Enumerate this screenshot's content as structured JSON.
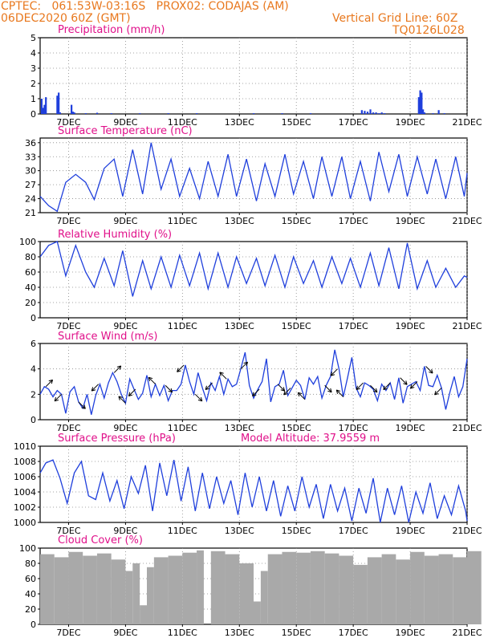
{
  "header": {
    "line1": "CPTEC:   061:53W-03:16S   PROX02: CODAJAS (AM)",
    "line2": "06DEC2020 60Z (GMT)",
    "grid_note": "Vertical Grid Line: 60Z",
    "code": "TQ0126L028"
  },
  "colors": {
    "header": "#e8781e",
    "title": "#e0108a",
    "series": "#1f3fdc",
    "cloud": "#a9a9a9",
    "grid": "#888888"
  },
  "chart_data": [
    {
      "type": "bar",
      "title": "Precipitation (mm/h)",
      "x_ticks": [
        "7DEC",
        "9DEC",
        "11DEC",
        "13DEC",
        "15DEC",
        "17DEC",
        "19DEC",
        "21DEC"
      ],
      "x": [
        0.05,
        0.1,
        0.15,
        0.2,
        0.6,
        0.65,
        0.7,
        1.1,
        1.15,
        1.2,
        1.6,
        2.0,
        2.5,
        3.5,
        4.5,
        5.5,
        7.5,
        8.5,
        9.5,
        11.3,
        11.4,
        11.5,
        11.6,
        11.7,
        11.8,
        11.9,
        12.0,
        12.1,
        13.3,
        13.35,
        13.4,
        13.45,
        13.5,
        13.8,
        14.0,
        14.2
      ],
      "values": [
        1.0,
        0.4,
        0.6,
        1.1,
        1.2,
        1.4,
        0.1,
        0.6,
        0.15,
        0.1,
        0.05,
        0.08,
        0.05,
        0.05,
        0.05,
        0.05,
        0.05,
        0.05,
        0.05,
        0.25,
        0.2,
        0.15,
        0.3,
        0.1,
        0.1,
        0.05,
        0.1,
        0.05,
        1.1,
        1.55,
        1.4,
        0.3,
        0.1,
        0.05,
        0.25,
        0.05
      ],
      "ylim": [
        0,
        5
      ],
      "yticks": [
        0,
        1,
        2,
        3,
        4,
        5
      ]
    },
    {
      "type": "line",
      "title": "Surface Temperature (nC)",
      "x_ticks": [
        "7DEC",
        "9DEC",
        "11DEC",
        "13DEC",
        "15DEC",
        "17DEC",
        "19DEC",
        "21DEC"
      ],
      "x": [
        0,
        0.3,
        0.6,
        0.9,
        1.25,
        1.6,
        1.9,
        2.25,
        2.6,
        2.9,
        3.25,
        3.6,
        3.9,
        4.25,
        4.6,
        4.9,
        5.25,
        5.6,
        5.9,
        6.25,
        6.6,
        6.9,
        7.25,
        7.6,
        7.9,
        8.25,
        8.6,
        8.9,
        9.25,
        9.6,
        9.9,
        10.25,
        10.6,
        10.9,
        11.25,
        11.6,
        11.9,
        12.25,
        12.6,
        12.9,
        13.25,
        13.6,
        13.9,
        14.25,
        14.6,
        14.9,
        15.0
      ],
      "values": [
        24.5,
        22.5,
        21.3,
        27.5,
        29.2,
        27.5,
        23.8,
        30.5,
        32.5,
        24.5,
        34.5,
        25.0,
        36.0,
        26.0,
        32.5,
        24.5,
        30.5,
        24.0,
        32.0,
        24.5,
        33.5,
        24.5,
        32.5,
        23.5,
        31.5,
        24.5,
        33.5,
        25.0,
        32.0,
        24.0,
        33.0,
        24.5,
        33.0,
        24.0,
        32.0,
        23.5,
        34.0,
        25.5,
        33.5,
        24.5,
        33.0,
        25.0,
        32.5,
        24.0,
        33.0,
        24.5,
        29.5
      ],
      "ylim": [
        21,
        37
      ],
      "yticks": [
        21,
        24,
        27,
        30,
        33,
        36
      ]
    },
    {
      "type": "line",
      "title": "Relative Humidity (%)",
      "x_ticks": [
        "7DEC",
        "9DEC",
        "11DEC",
        "13DEC",
        "15DEC",
        "17DEC",
        "19DEC",
        "21DEC"
      ],
      "x": [
        0,
        0.3,
        0.6,
        0.9,
        1.25,
        1.6,
        1.9,
        2.25,
        2.6,
        2.9,
        3.25,
        3.6,
        3.9,
        4.25,
        4.6,
        4.9,
        5.25,
        5.6,
        5.9,
        6.25,
        6.6,
        6.9,
        7.25,
        7.6,
        7.9,
        8.25,
        8.6,
        8.9,
        9.25,
        9.6,
        9.9,
        10.25,
        10.6,
        10.9,
        11.25,
        11.6,
        11.9,
        12.25,
        12.6,
        12.9,
        13.25,
        13.6,
        13.9,
        14.25,
        14.6,
        14.9,
        15.0
      ],
      "values": [
        80,
        95,
        100,
        55,
        95,
        60,
        40,
        78,
        42,
        88,
        28,
        75,
        38,
        80,
        40,
        82,
        42,
        85,
        38,
        85,
        40,
        80,
        45,
        78,
        42,
        82,
        40,
        80,
        45,
        75,
        40,
        80,
        45,
        78,
        40,
        85,
        42,
        92,
        38,
        98,
        38,
        75,
        40,
        65,
        40,
        55,
        53
      ],
      "ylim": [
        0,
        100
      ],
      "yticks": [
        0,
        20,
        40,
        60,
        80,
        100
      ]
    },
    {
      "type": "line",
      "title": "Surface Wind (m/s)",
      "x_ticks": [
        "7DEC",
        "9DEC",
        "11DEC",
        "13DEC",
        "15DEC",
        "17DEC",
        "19DEC",
        "21DEC"
      ],
      "x": [
        0,
        0.15,
        0.3,
        0.45,
        0.6,
        0.75,
        0.9,
        1.05,
        1.2,
        1.35,
        1.5,
        1.65,
        1.8,
        1.95,
        2.1,
        2.25,
        2.4,
        2.55,
        2.7,
        2.85,
        3.0,
        3.15,
        3.3,
        3.45,
        3.6,
        3.75,
        3.9,
        4.05,
        4.2,
        4.35,
        4.5,
        4.65,
        4.8,
        4.95,
        5.1,
        5.25,
        5.4,
        5.55,
        5.7,
        5.85,
        6.0,
        6.15,
        6.3,
        6.45,
        6.6,
        6.75,
        6.9,
        7.05,
        7.2,
        7.35,
        7.5,
        7.65,
        7.8,
        7.95,
        8.1,
        8.25,
        8.4,
        8.55,
        8.7,
        8.85,
        9.0,
        9.15,
        9.3,
        9.45,
        9.6,
        9.75,
        9.9,
        10.05,
        10.2,
        10.35,
        10.5,
        10.65,
        10.8,
        10.95,
        11.1,
        11.25,
        11.4,
        11.55,
        11.7,
        11.85,
        12.0,
        12.15,
        12.3,
        12.45,
        12.6,
        12.75,
        12.9,
        13.05,
        13.2,
        13.35,
        13.5,
        13.65,
        13.8,
        13.95,
        14.1,
        14.25,
        14.4,
        14.55,
        14.7,
        14.85,
        15.0
      ],
      "values": [
        2.0,
        2.6,
        2.4,
        1.8,
        2.3,
        2.0,
        0.5,
        2.2,
        2.6,
        1.4,
        0.9,
        2.0,
        0.4,
        1.9,
        2.8,
        1.7,
        2.9,
        3.7,
        3.0,
        2.0,
        1.3,
        3.2,
        2.4,
        1.6,
        2.1,
        3.5,
        1.8,
        2.8,
        1.9,
        2.7,
        1.5,
        2.3,
        2.3,
        2.8,
        4.3,
        3.0,
        2.0,
        3.7,
        2.5,
        1.5,
        2.9,
        2.3,
        3.4,
        2.0,
        3.2,
        2.6,
        2.8,
        4.0,
        5.3,
        2.7,
        1.7,
        2.4,
        3.0,
        4.8,
        1.4,
        2.6,
        2.8,
        3.9,
        1.9,
        2.5,
        3.1,
        2.7,
        1.6,
        3.3,
        2.8,
        3.4,
        1.7,
        2.7,
        3.4,
        5.5,
        4.0,
        1.8,
        3.3,
        4.9,
        2.5,
        1.8,
        2.9,
        2.7,
        2.4,
        1.5,
        2.8,
        2.3,
        2.9,
        1.6,
        3.3,
        1.3,
        2.6,
        2.8,
        3.0,
        2.3,
        4.2,
        2.7,
        2.6,
        3.5,
        2.5,
        0.8,
        2.2,
        3.4,
        1.8,
        2.6,
        4.8
      ],
      "ylim": [
        0,
        6
      ],
      "yticks": [
        0,
        2,
        4,
        6
      ],
      "arrow_x": [
        0.2,
        0.75,
        1.35,
        2.05,
        2.6,
        3.0,
        3.35,
        4.05,
        4.4,
        5.05,
        5.45,
        6.05,
        6.55,
        7.05,
        7.7,
        8.35,
        8.8,
        9.3,
        10.0,
        10.45,
        10.65,
        11.35,
        11.6,
        12.3,
        12.65,
        13.25,
        13.55,
        14.1
      ],
      "arrow_dir": [
        45,
        225,
        315,
        225,
        45,
        135,
        225,
        135,
        315,
        225,
        315,
        225,
        135,
        45,
        225,
        315,
        225,
        135,
        315,
        225,
        135,
        225,
        315,
        225,
        315,
        225,
        315,
        225
      ]
    },
    {
      "type": "line",
      "title": "Surface Pressure (hPa)",
      "annotation": "Model Altitude: 37.9559  m",
      "x_ticks": [
        "7DEC",
        "9DEC",
        "11DEC",
        "13DEC",
        "15DEC",
        "17DEC",
        "19DEC",
        "21DEC"
      ],
      "x": [
        0,
        0.2,
        0.45,
        0.7,
        0.95,
        1.2,
        1.45,
        1.7,
        1.95,
        2.2,
        2.45,
        2.7,
        2.95,
        3.2,
        3.45,
        3.7,
        3.95,
        4.2,
        4.45,
        4.7,
        4.95,
        5.2,
        5.45,
        5.7,
        5.95,
        6.2,
        6.45,
        6.7,
        6.95,
        7.2,
        7.45,
        7.7,
        7.95,
        8.2,
        8.45,
        8.7,
        8.95,
        9.2,
        9.45,
        9.7,
        9.95,
        10.2,
        10.45,
        10.7,
        10.95,
        11.2,
        11.45,
        11.7,
        11.95,
        12.2,
        12.45,
        12.7,
        12.95,
        13.2,
        13.45,
        13.7,
        13.95,
        14.2,
        14.45,
        14.7,
        14.95,
        15.0
      ],
      "values": [
        1006.5,
        1007.8,
        1008.2,
        1005.8,
        1002.5,
        1006.5,
        1008.0,
        1003.5,
        1003.0,
        1006.5,
        1002.8,
        1005.5,
        1001.8,
        1006.0,
        1003.8,
        1007.5,
        1001.5,
        1007.8,
        1003.5,
        1008.2,
        1002.8,
        1007.3,
        1001.5,
        1006.5,
        1001.8,
        1006.0,
        1002.5,
        1005.5,
        1001.0,
        1006.5,
        1002.0,
        1006.0,
        1001.5,
        1005.5,
        1000.8,
        1004.8,
        1001.5,
        1006.0,
        1002.0,
        1005.0,
        1000.5,
        1005.0,
        1001.5,
        1004.5,
        1000.2,
        1004.5,
        1001.2,
        1005.8,
        1000.0,
        1004.5,
        1001.0,
        1004.8,
        1000.0,
        1004.0,
        1001.2,
        1005.2,
        1000.5,
        1003.5,
        1001.0,
        1004.8,
        1001.5,
        1000.2
      ],
      "ylim": [
        1000,
        1010
      ],
      "yticks": [
        1000,
        1002,
        1004,
        1006,
        1008,
        1010
      ]
    },
    {
      "type": "bar",
      "title": "Cloud Cover (%)",
      "x_ticks": [
        "7DEC",
        "9DEC",
        "11DEC",
        "13DEC",
        "15DEC",
        "17DEC",
        "19DEC",
        "21DEC"
      ],
      "x": [
        0,
        0.5,
        1.0,
        1.5,
        2.0,
        2.5,
        3.0,
        3.25,
        3.5,
        3.75,
        4.0,
        4.5,
        5.0,
        5.5,
        5.75,
        6.0,
        6.5,
        7.0,
        7.5,
        7.75,
        8.0,
        8.5,
        9.0,
        9.5,
        10.0,
        10.5,
        11.0,
        11.5,
        12.0,
        12.5,
        13.0,
        13.5,
        14.0,
        14.5,
        15.0
      ],
      "values": [
        92,
        88,
        95,
        90,
        93,
        85,
        70,
        80,
        25,
        75,
        88,
        90,
        94,
        97,
        0,
        96,
        92,
        80,
        30,
        70,
        92,
        95,
        94,
        96,
        93,
        90,
        78,
        88,
        92,
        85,
        95,
        90,
        92,
        88,
        96
      ],
      "ylim": [
        0,
        100
      ],
      "yticks": [
        0,
        20,
        40,
        60,
        80,
        100
      ]
    }
  ]
}
